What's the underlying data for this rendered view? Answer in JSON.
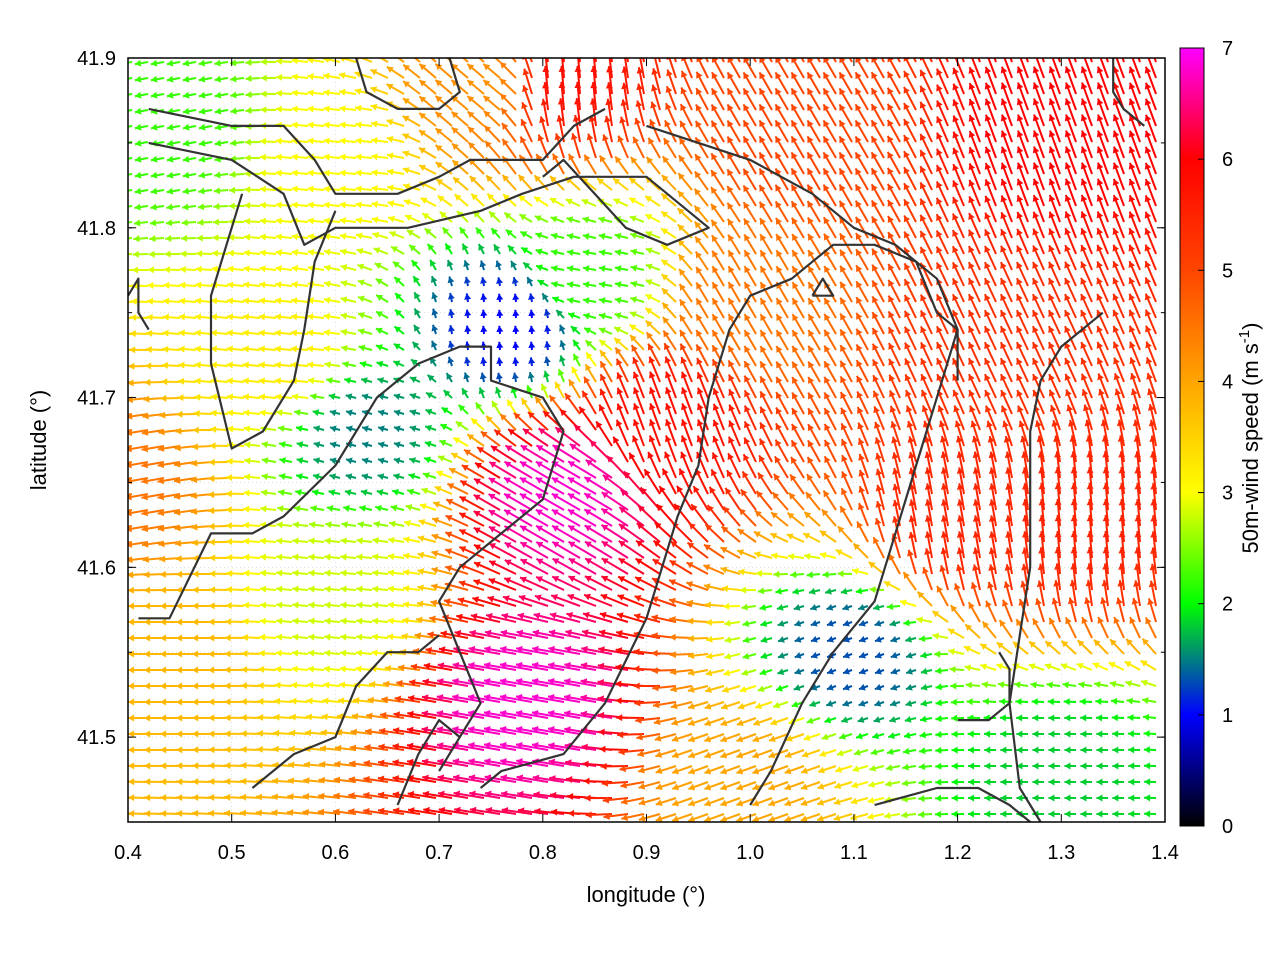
{
  "chart_data": {
    "type": "vector-field",
    "xlabel": "longitude (°)",
    "ylabel": "latitude (°)",
    "xlim": [
      0.4,
      1.4
    ],
    "ylim": [
      41.45,
      41.9
    ],
    "xticks": [
      "0.4",
      "0.5",
      "0.6",
      "0.7",
      "0.8",
      "0.9",
      "1.0",
      "1.1",
      "1.2",
      "1.3",
      "1.4"
    ],
    "yticks": [
      "41.5",
      "41.6",
      "41.7",
      "41.8",
      "41.9"
    ],
    "colorbar": {
      "label": "50m-wind speed (m s",
      "label_sup": "-1",
      "label_end": ")",
      "range": [
        0,
        7
      ],
      "ticks": [
        "0",
        "1",
        "2",
        "3",
        "4",
        "5",
        "6",
        "7"
      ],
      "stops": [
        "#000000",
        "#0000ff",
        "#00ff00",
        "#ffff00",
        "#ffa500",
        "#ff4500",
        "#ff0000",
        "#ff00ff"
      ]
    },
    "grid": "dotted-light",
    "wind_regions": [
      {
        "lon": 0.45,
        "lat": 41.86,
        "speed": 2.2,
        "dir_deg": 190
      },
      {
        "lon": 0.6,
        "lat": 41.84,
        "speed": 3.0,
        "dir_deg": 175
      },
      {
        "lon": 0.75,
        "lat": 41.88,
        "speed": 4.2,
        "dir_deg": 140
      },
      {
        "lon": 0.82,
        "lat": 41.88,
        "speed": 5.8,
        "dir_deg": 95
      },
      {
        "lon": 1.05,
        "lat": 41.85,
        "speed": 5.0,
        "dir_deg": 120
      },
      {
        "lon": 1.3,
        "lat": 41.85,
        "speed": 6.0,
        "dir_deg": 110
      },
      {
        "lon": 0.85,
        "lat": 41.77,
        "speed": 2.2,
        "dir_deg": 170
      },
      {
        "lon": 0.77,
        "lat": 41.74,
        "speed": 1.0,
        "dir_deg": 95
      },
      {
        "lon": 1.0,
        "lat": 41.75,
        "speed": 4.5,
        "dir_deg": 120
      },
      {
        "lon": 1.25,
        "lat": 41.72,
        "speed": 5.3,
        "dir_deg": 115
      },
      {
        "lon": 0.55,
        "lat": 41.72,
        "speed": 3.2,
        "dir_deg": 175
      },
      {
        "lon": 0.63,
        "lat": 41.68,
        "speed": 1.5,
        "dir_deg": 165
      },
      {
        "lon": 0.83,
        "lat": 41.64,
        "speed": 6.8,
        "dir_deg": 150
      },
      {
        "lon": 0.92,
        "lat": 41.68,
        "speed": 5.8,
        "dir_deg": 110
      },
      {
        "lon": 0.8,
        "lat": 41.52,
        "speed": 6.8,
        "dir_deg": 170
      },
      {
        "lon": 0.45,
        "lat": 41.55,
        "speed": 3.8,
        "dir_deg": 180
      },
      {
        "lon": 0.6,
        "lat": 41.58,
        "speed": 2.8,
        "dir_deg": 175
      },
      {
        "lon": 1.1,
        "lat": 41.55,
        "speed": 1.3,
        "dir_deg": 200
      },
      {
        "lon": 1.2,
        "lat": 41.62,
        "speed": 5.5,
        "dir_deg": 100
      },
      {
        "lon": 1.32,
        "lat": 41.62,
        "speed": 5.5,
        "dir_deg": 95
      },
      {
        "lon": 1.3,
        "lat": 41.48,
        "speed": 1.8,
        "dir_deg": 180
      },
      {
        "lon": 1.0,
        "lat": 41.48,
        "speed": 4.0,
        "dir_deg": 200
      },
      {
        "lon": 0.4,
        "lat": 41.65,
        "speed": 4.5,
        "dir_deg": 190
      }
    ],
    "contours": [
      [
        [
          0.42,
          41.87
        ],
        [
          0.5,
          41.86
        ],
        [
          0.55,
          41.86
        ],
        [
          0.58,
          41.84
        ],
        [
          0.6,
          41.82
        ],
        [
          0.66,
          41.82
        ],
        [
          0.7,
          41.83
        ],
        [
          0.73,
          41.84
        ],
        [
          0.75,
          41.84
        ],
        [
          0.8,
          41.84
        ],
        [
          0.83,
          41.86
        ],
        [
          0.86,
          41.87
        ]
      ],
      [
        [
          0.42,
          41.85
        ],
        [
          0.5,
          41.84
        ],
        [
          0.55,
          41.82
        ],
        [
          0.57,
          41.79
        ],
        [
          0.6,
          41.8
        ],
        [
          0.67,
          41.8
        ],
        [
          0.74,
          41.81
        ],
        [
          0.78,
          41.82
        ],
        [
          0.83,
          41.83
        ],
        [
          0.9,
          41.83
        ],
        [
          0.96,
          41.8
        ],
        [
          0.92,
          41.79
        ],
        [
          0.88,
          41.8
        ],
        [
          0.85,
          41.82
        ],
        [
          0.82,
          41.84
        ],
        [
          0.8,
          41.83
        ]
      ],
      [
        [
          0.41,
          41.57
        ],
        [
          0.44,
          41.57
        ],
        [
          0.48,
          41.62
        ],
        [
          0.52,
          41.62
        ],
        [
          0.55,
          41.63
        ],
        [
          0.6,
          41.66
        ],
        [
          0.64,
          41.7
        ],
        [
          0.68,
          41.72
        ],
        [
          0.72,
          41.73
        ],
        [
          0.75,
          41.73
        ],
        [
          0.75,
          41.71
        ],
        [
          0.8,
          41.7
        ],
        [
          0.82,
          41.68
        ],
        [
          0.8,
          41.64
        ],
        [
          0.76,
          41.62
        ],
        [
          0.72,
          41.6
        ],
        [
          0.7,
          41.58
        ],
        [
          0.72,
          41.55
        ],
        [
          0.74,
          41.52
        ],
        [
          0.72,
          41.5
        ],
        [
          0.7,
          41.48
        ]
      ],
      [
        [
          0.52,
          41.47
        ],
        [
          0.56,
          41.49
        ],
        [
          0.6,
          41.5
        ],
        [
          0.62,
          41.53
        ],
        [
          0.65,
          41.55
        ],
        [
          0.68,
          41.55
        ],
        [
          0.7,
          41.56
        ]
      ],
      [
        [
          0.66,
          41.46
        ],
        [
          0.68,
          41.49
        ],
        [
          0.7,
          41.51
        ],
        [
          0.72,
          41.5
        ]
      ],
      [
        [
          0.51,
          41.82
        ],
        [
          0.5,
          41.8
        ],
        [
          0.48,
          41.76
        ],
        [
          0.48,
          41.72
        ],
        [
          0.5,
          41.67
        ],
        [
          0.53,
          41.68
        ],
        [
          0.56,
          41.71
        ],
        [
          0.57,
          41.74
        ],
        [
          0.58,
          41.78
        ],
        [
          0.6,
          41.81
        ]
      ],
      [
        [
          0.74,
          41.47
        ],
        [
          0.76,
          41.48
        ],
        [
          0.82,
          41.49
        ],
        [
          0.86,
          41.52
        ],
        [
          0.9,
          41.57
        ],
        [
          0.93,
          41.63
        ],
        [
          0.95,
          41.66
        ],
        [
          0.96,
          41.7
        ],
        [
          0.98,
          41.74
        ],
        [
          1.0,
          41.76
        ],
        [
          1.04,
          41.77
        ],
        [
          1.06,
          41.78
        ],
        [
          1.08,
          41.79
        ],
        [
          1.12,
          41.79
        ],
        [
          1.16,
          41.78
        ],
        [
          1.18,
          41.75
        ],
        [
          1.2,
          41.74
        ],
        [
          1.18,
          41.7
        ],
        [
          1.16,
          41.66
        ],
        [
          1.14,
          41.62
        ],
        [
          1.12,
          41.58
        ],
        [
          1.08,
          41.55
        ],
        [
          1.05,
          41.52
        ],
        [
          1.02,
          41.48
        ],
        [
          1.0,
          41.46
        ]
      ],
      [
        [
          0.9,
          41.86
        ],
        [
          0.95,
          41.85
        ],
        [
          1.0,
          41.84
        ],
        [
          1.06,
          41.82
        ],
        [
          1.1,
          41.8
        ],
        [
          1.14,
          41.79
        ],
        [
          1.18,
          41.77
        ],
        [
          1.2,
          41.74
        ],
        [
          1.2,
          41.71
        ]
      ],
      [
        [
          1.06,
          41.76
        ],
        [
          1.08,
          41.76
        ],
        [
          1.07,
          41.77
        ],
        [
          1.06,
          41.76
        ]
      ],
      [
        [
          1.34,
          41.75
        ],
        [
          1.3,
          41.73
        ],
        [
          1.28,
          41.71
        ],
        [
          1.27,
          41.68
        ],
        [
          1.27,
          41.64
        ],
        [
          1.27,
          41.6
        ],
        [
          1.26,
          41.56
        ],
        [
          1.25,
          41.52
        ],
        [
          1.26,
          41.47
        ],
        [
          1.28,
          41.45
        ]
      ],
      [
        [
          1.12,
          41.46
        ],
        [
          1.18,
          41.47
        ],
        [
          1.22,
          41.47
        ],
        [
          1.25,
          41.46
        ],
        [
          1.27,
          41.45
        ]
      ],
      [
        [
          1.2,
          41.51
        ],
        [
          1.23,
          41.51
        ],
        [
          1.25,
          41.52
        ],
        [
          1.25,
          41.54
        ],
        [
          1.24,
          41.55
        ]
      ],
      [
        [
          1.35,
          41.9
        ],
        [
          1.35,
          41.88
        ],
        [
          1.36,
          41.87
        ],
        [
          1.38,
          41.86
        ]
      ],
      [
        [
          0.62,
          41.9
        ],
        [
          0.63,
          41.88
        ],
        [
          0.66,
          41.87
        ],
        [
          0.7,
          41.87
        ],
        [
          0.72,
          41.88
        ],
        [
          0.71,
          41.9
        ]
      ],
      [
        [
          0.4,
          41.76
        ],
        [
          0.41,
          41.77
        ],
        [
          0.41,
          41.75
        ],
        [
          0.42,
          41.74
        ]
      ]
    ]
  }
}
